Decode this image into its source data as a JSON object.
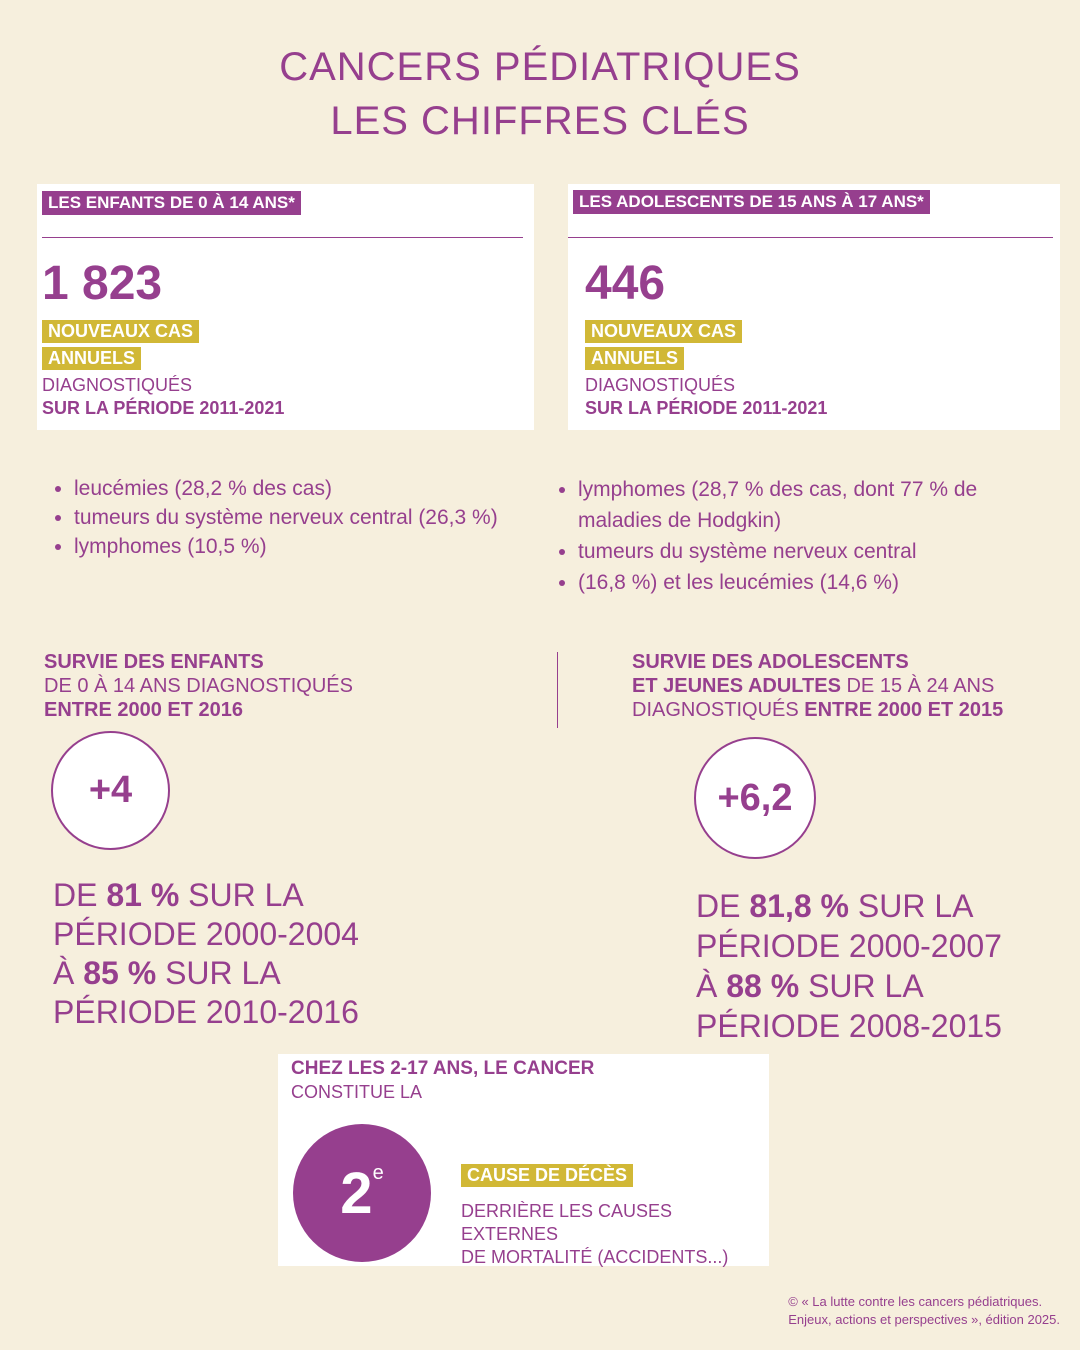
{
  "title": {
    "line1": "CANCERS PÉDIATRIQUES",
    "line2": "LES CHIFFRES CLÉS"
  },
  "children": {
    "tag": "LES ENFANTS DE 0 À 14 ANS*",
    "number": "1 823",
    "label1": "NOUVEAUX CAS",
    "label2": "ANNUELS",
    "diag1": "DIAGNOSTIQUÉS",
    "diag2": "SUR LA PÉRIODE 2011-2021",
    "bullets": [
      "leucémies (28,2 % des cas)",
      "tumeurs du système nerveux central (26,3 %)",
      "lymphomes (10,5 %)"
    ]
  },
  "adolescents": {
    "tag": "LES ADOLESCENTS DE 15 ANS À 17 ANS*",
    "number": "446",
    "label1": "NOUVEAUX CAS",
    "label2": "ANNUELS",
    "diag1": "DIAGNOSTIQUÉS",
    "diag2": "SUR LA PÉRIODE 2011-2021",
    "bullets": [
      "lymphomes (28,7 % des cas, dont 77 % de maladies de Hodgkin)",
      "tumeurs du système nerveux central",
      "(16,8 %) et les leucémies (14,6 %)"
    ]
  },
  "survival_children": {
    "h1": "SURVIE DES ENFANTS",
    "h2": "DE 0 À 14 ANS DIAGNOSTIQUÉS",
    "h3": "ENTRE 2000 ET 2016",
    "gain": "+4",
    "l1a": "DE ",
    "l1b": "81 %",
    "l1c": " SUR LA",
    "l2": "PÉRIODE 2000-2004",
    "l3a": "À ",
    "l3b": "85 %",
    "l3c": " SUR LA",
    "l4": "PÉRIODE 2010-2016"
  },
  "survival_adolescents": {
    "h1": "SURVIE DES ADOLESCENTS",
    "h2a": "ET JEUNES ADULTES",
    "h2b": " DE 15 À 24 ANS",
    "h3a": "DIAGNOSTIQUÉS ",
    "h3b": "ENTRE 2000 ET 2015",
    "gain": "+6,2",
    "l1a": "DE ",
    "l1b": "81,8 %",
    "l1c": " SUR LA",
    "l2": "PÉRIODE 2000-2007",
    "l3a": "À ",
    "l3b": "88 %",
    "l3c": " SUR LA",
    "l4": "PÉRIODE 2008-2015"
  },
  "death": {
    "h1": "CHEZ LES 2-17 ANS, LE CANCER",
    "h2": "CONSTITUE LA",
    "rank": "2",
    "sup": "e",
    "label": "CAUSE DE DÉCÈS",
    "d1": "DERRIÈRE LES CAUSES EXTERNES",
    "d2": "DE MORTALITÉ (ACCIDENTS...)"
  },
  "footer": {
    "l1": "© « La lutte contre les cancers pédiatriques.",
    "l2": "Enjeux, actions et perspectives », édition 2025."
  },
  "colors": {
    "background": "#f6efdd",
    "purple": "#963f8e",
    "gold": "#d1b836"
  }
}
